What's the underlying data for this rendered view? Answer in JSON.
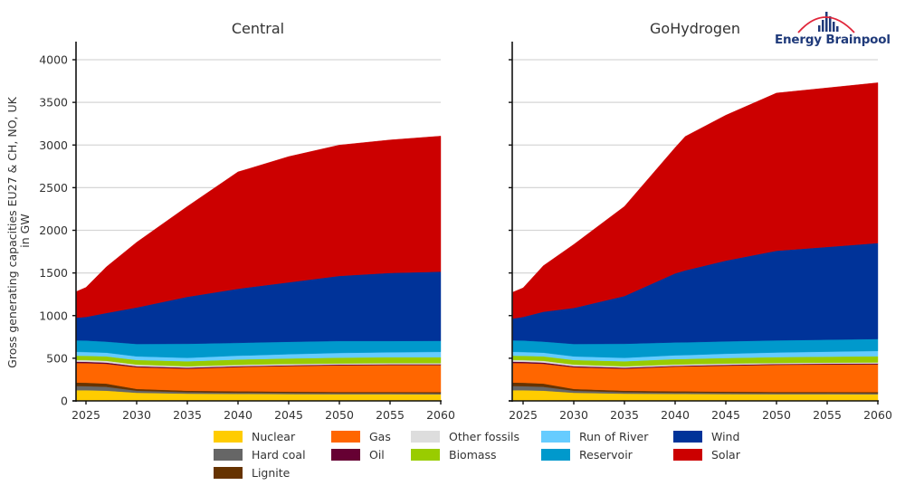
{
  "chart_data": [
    {
      "type": "area",
      "stacked": true,
      "title": "Central",
      "xlabel": "",
      "ylabel": "Gross generating capacities EU27 & CH, NO, UK in GW",
      "xlim": [
        2024,
        2060
      ],
      "ylim": [
        0,
        4000
      ],
      "x": [
        2024,
        2025,
        2027,
        2030,
        2035,
        2040,
        2041,
        2045,
        2050,
        2055,
        2060
      ],
      "series": [
        {
          "name": "Nuclear",
          "values": [
            125,
            125,
            120,
            95,
            85,
            82,
            82,
            80,
            78,
            78,
            77
          ]
        },
        {
          "name": "Hard coal",
          "values": [
            50,
            48,
            45,
            25,
            18,
            15,
            15,
            14,
            13,
            13,
            13
          ]
        },
        {
          "name": "Lignite",
          "values": [
            40,
            40,
            38,
            20,
            17,
            15,
            15,
            14,
            14,
            14,
            14
          ]
        },
        {
          "name": "Gas",
          "values": [
            230,
            230,
            232,
            255,
            258,
            285,
            288,
            300,
            312,
            315,
            316
          ]
        },
        {
          "name": "Oil",
          "values": [
            15,
            15,
            15,
            12,
            12,
            10,
            10,
            10,
            10,
            10,
            10
          ]
        },
        {
          "name": "Other fossils",
          "values": [
            20,
            20,
            20,
            18,
            15,
            15,
            15,
            15,
            12,
            12,
            12
          ]
        },
        {
          "name": "Biomass",
          "values": [
            50,
            50,
            52,
            55,
            60,
            63,
            63,
            65,
            68,
            70,
            70
          ]
        },
        {
          "name": "Run of River",
          "values": [
            45,
            45,
            43,
            42,
            40,
            45,
            45,
            50,
            55,
            58,
            63
          ]
        },
        {
          "name": "Reservoir",
          "values": [
            135,
            135,
            130,
            145,
            165,
            150,
            150,
            145,
            140,
            132,
            130
          ]
        },
        {
          "name": "Wind",
          "values": [
            265,
            277,
            335,
            428,
            550,
            635,
            647,
            697,
            763,
            798,
            810
          ]
        },
        {
          "name": "Solar",
          "values": [
            305,
            345,
            540,
            765,
            1060,
            1370,
            1390,
            1475,
            1535,
            1560,
            1590
          ]
        }
      ],
      "yticks": [
        0,
        500,
        1000,
        1500,
        2000,
        2500,
        3000,
        3500,
        4000
      ],
      "xticks": [
        2025,
        2030,
        2035,
        2040,
        2045,
        2050,
        2055,
        2060
      ],
      "grid": true
    },
    {
      "type": "area",
      "stacked": true,
      "title": "GoHydrogen",
      "xlabel": "",
      "ylabel": "",
      "xlim": [
        2024,
        2060
      ],
      "ylim": [
        0,
        4000
      ],
      "x": [
        2024,
        2025,
        2027,
        2030,
        2035,
        2040,
        2041,
        2045,
        2050,
        2055,
        2060
      ],
      "series": [
        {
          "name": "Nuclear",
          "values": [
            125,
            125,
            120,
            95,
            85,
            82,
            82,
            80,
            78,
            78,
            77
          ]
        },
        {
          "name": "Hard coal",
          "values": [
            50,
            48,
            45,
            25,
            18,
            15,
            15,
            14,
            13,
            13,
            13
          ]
        },
        {
          "name": "Lignite",
          "values": [
            40,
            40,
            38,
            20,
            17,
            15,
            15,
            14,
            14,
            14,
            14
          ]
        },
        {
          "name": "Gas",
          "values": [
            230,
            230,
            232,
            255,
            258,
            290,
            292,
            305,
            318,
            322,
            325
          ]
        },
        {
          "name": "Oil",
          "values": [
            15,
            15,
            15,
            12,
            12,
            10,
            10,
            10,
            10,
            10,
            10
          ]
        },
        {
          "name": "Other fossils",
          "values": [
            20,
            20,
            20,
            18,
            15,
            15,
            15,
            15,
            12,
            12,
            12
          ]
        },
        {
          "name": "Biomass",
          "values": [
            50,
            50,
            52,
            55,
            60,
            63,
            63,
            65,
            68,
            70,
            72
          ]
        },
        {
          "name": "Run of River",
          "values": [
            45,
            45,
            43,
            42,
            40,
            45,
            45,
            50,
            55,
            58,
            63
          ]
        },
        {
          "name": "Reservoir",
          "values": [
            135,
            135,
            130,
            145,
            165,
            150,
            150,
            145,
            142,
            140,
            140
          ]
        },
        {
          "name": "Wind",
          "values": [
            255,
            277,
            350,
            423,
            560,
            810,
            843,
            947,
            1050,
            1088,
            1124
          ]
        },
        {
          "name": "Solar",
          "values": [
            310,
            340,
            540,
            745,
            1050,
            1475,
            1570,
            1705,
            1850,
            1865,
            1880
          ]
        }
      ],
      "yticks": [
        0,
        500,
        1000,
        1500,
        2000,
        2500,
        3000,
        3500,
        4000
      ],
      "xticks": [
        2025,
        2030,
        2035,
        2040,
        2045,
        2050,
        2055,
        2060
      ],
      "grid": true
    }
  ],
  "legend": {
    "placement": "bottom",
    "items": [
      {
        "name": "Nuclear",
        "color": "#ffcc00"
      },
      {
        "name": "Hard coal",
        "color": "#666666"
      },
      {
        "name": "Lignite",
        "color": "#663300"
      },
      {
        "name": "Gas",
        "color": "#ff6600"
      },
      {
        "name": "Oil",
        "color": "#660033"
      },
      {
        "name": "Other fossils",
        "color": "#dddddd"
      },
      {
        "name": "Biomass",
        "color": "#99cc00"
      },
      {
        "name": "Run of River",
        "color": "#66ccff"
      },
      {
        "name": "Reservoir",
        "color": "#0099cc"
      },
      {
        "name": "Wind",
        "color": "#003399"
      },
      {
        "name": "Solar",
        "color": "#cc0000"
      }
    ]
  },
  "logo": {
    "text": "Energy Brainpool",
    "text_color": "#1f3a7a",
    "curve_color": "#e0263a"
  }
}
